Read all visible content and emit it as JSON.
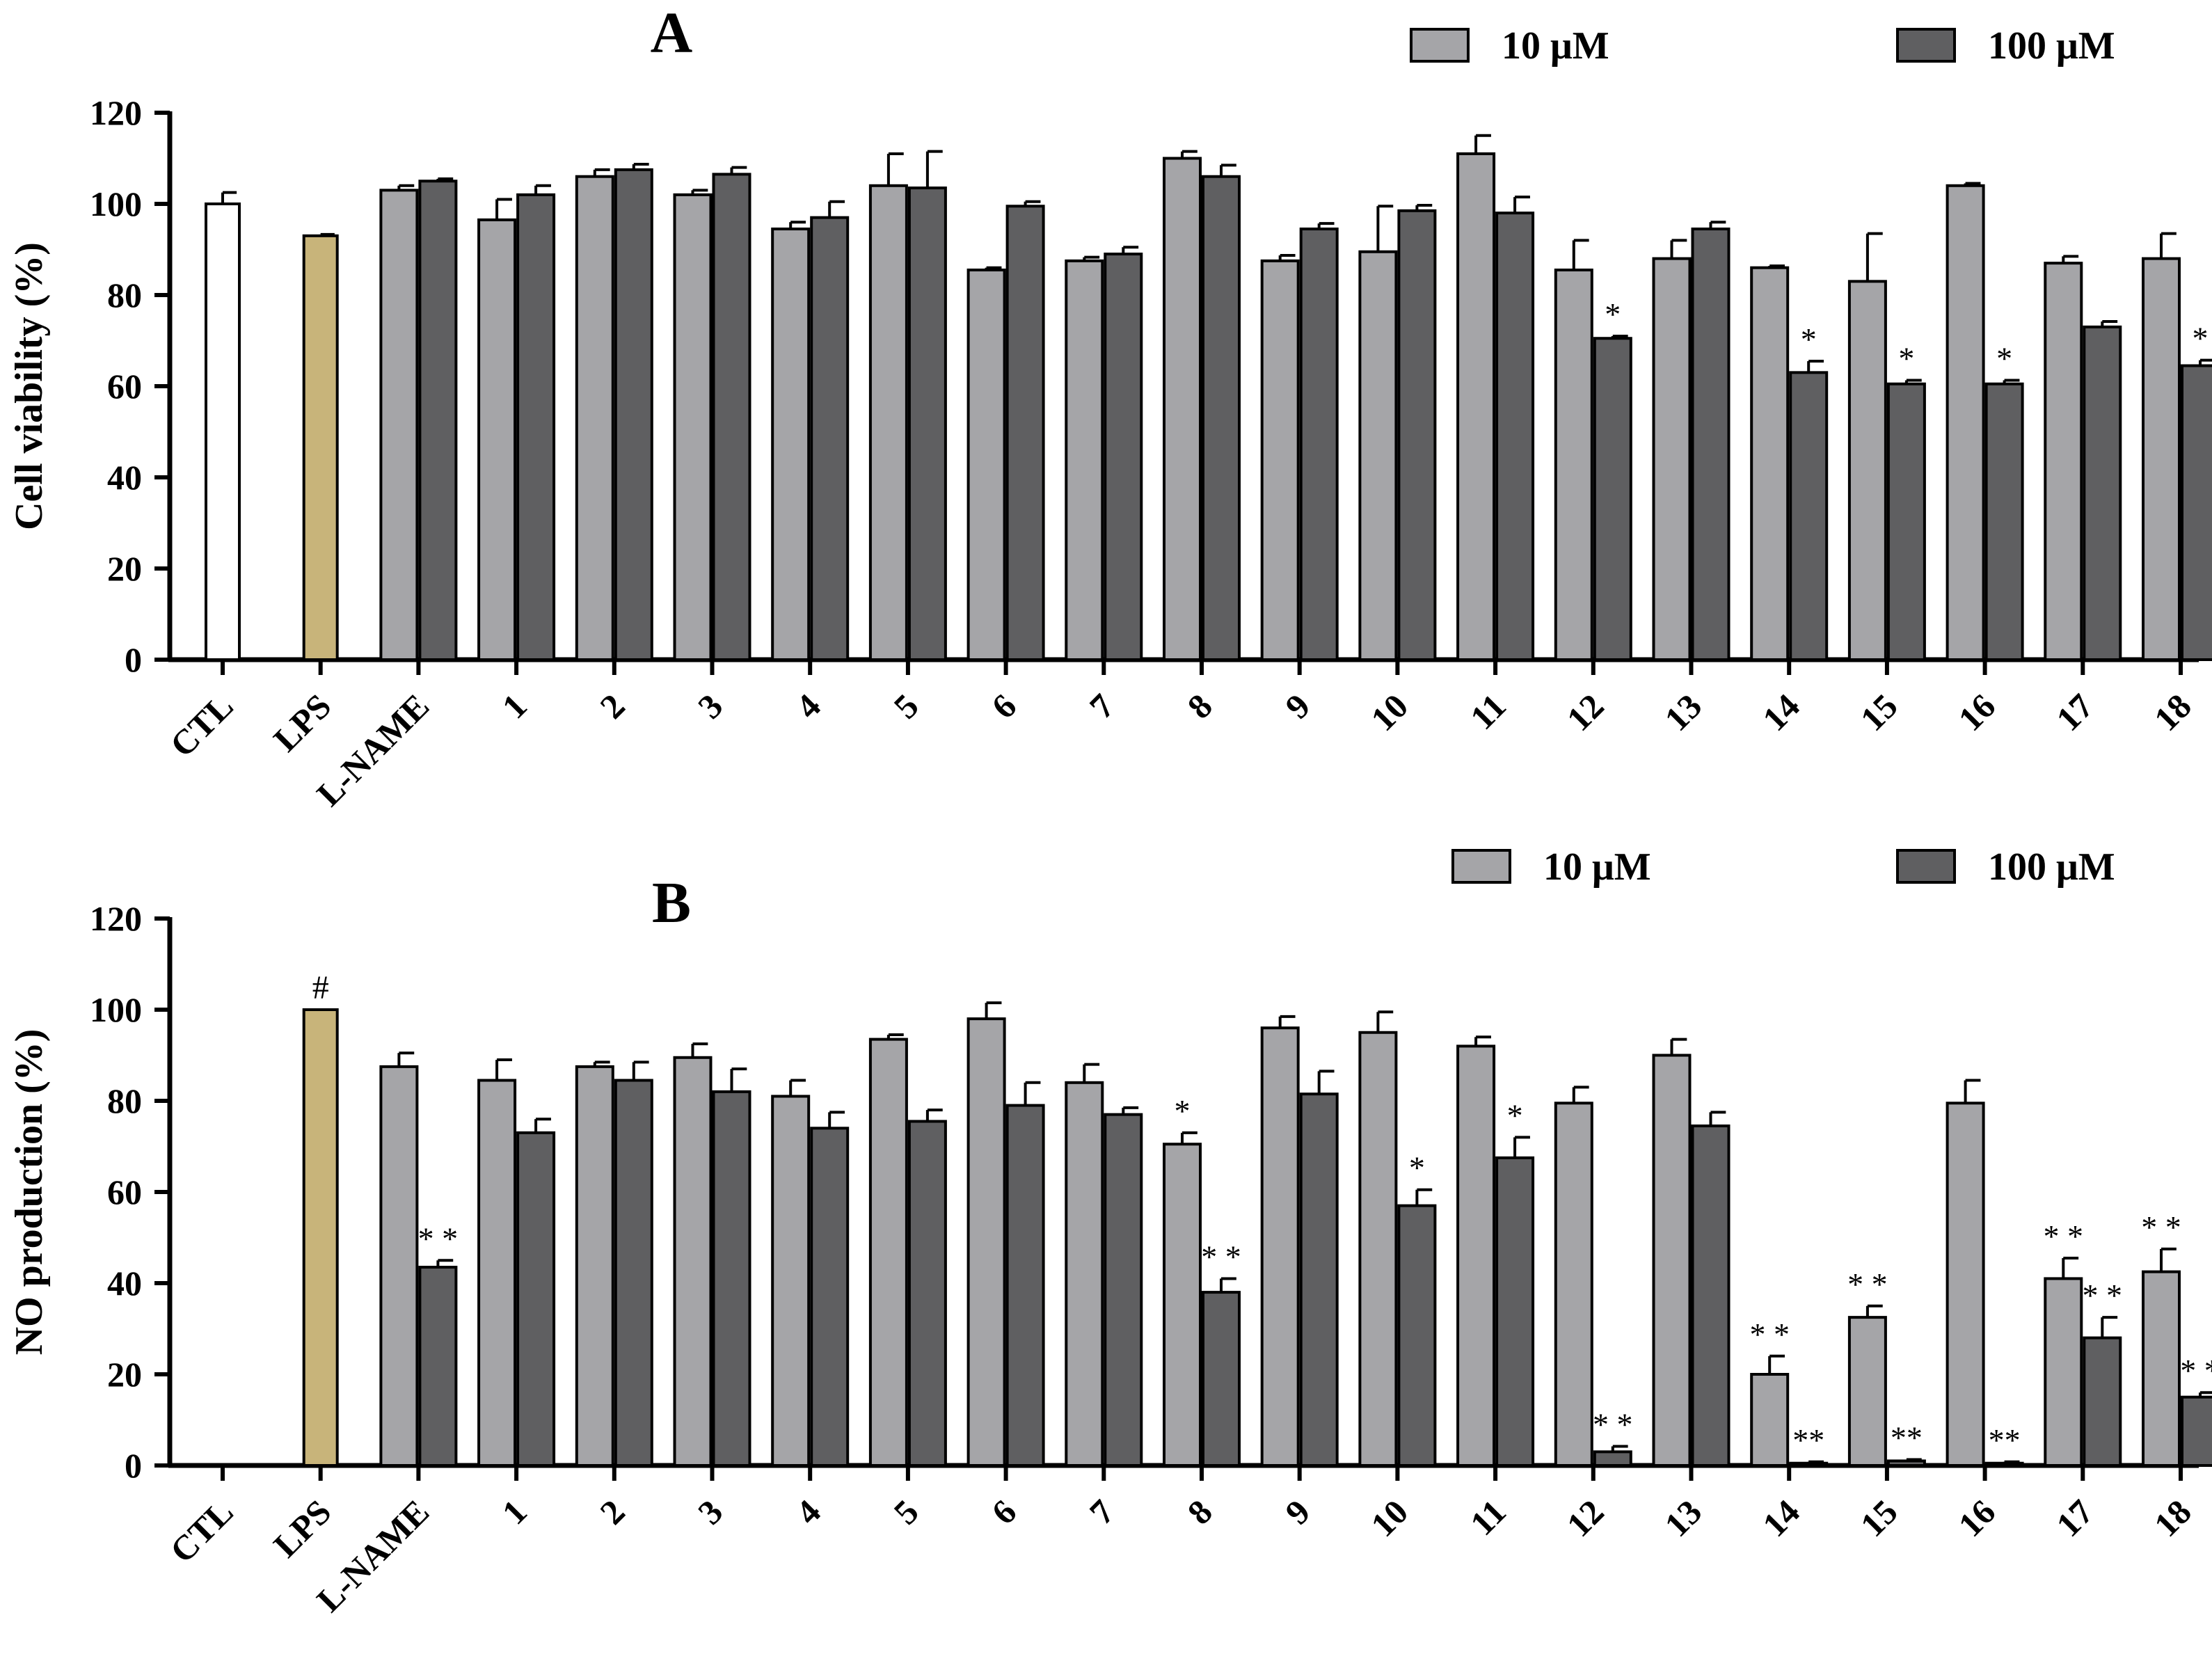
{
  "colors": {
    "ctl": "#ffffff",
    "lps": "#c8b47a",
    "low": "#a5a5a8",
    "high": "#5f5f61",
    "axis": "#000000"
  },
  "categories": [
    "CTL",
    "LPS",
    "L-NAME",
    "1",
    "2",
    "3",
    "4",
    "5",
    "6",
    "7",
    "8",
    "9",
    "10",
    "11",
    "12",
    "13",
    "14",
    "15",
    "16",
    "17",
    "18"
  ],
  "chart_data": [
    {
      "type": "bar",
      "panel": "A",
      "title": "A",
      "ylabel": "Cell viability (%)",
      "xlabel": "",
      "ylim": [
        0,
        120
      ],
      "yticks": [
        0,
        20,
        40,
        60,
        80,
        100,
        120
      ],
      "legend": [
        "10 μM",
        "100 μM"
      ],
      "legend_position": "top-right",
      "controls": [
        {
          "category": "CTL",
          "value": 100,
          "error": 2.5,
          "color_key": "ctl",
          "sig": ""
        },
        {
          "category": "LPS",
          "value": 93,
          "error": 0.3,
          "color_key": "lps",
          "sig": ""
        }
      ],
      "series": [
        {
          "name": "10 μM",
          "color_key": "low",
          "values": [
            103,
            96.5,
            106,
            102,
            94.5,
            104,
            85.5,
            87.5,
            110,
            87.5,
            89.5,
            111,
            85.5,
            88,
            86,
            83,
            104,
            87,
            88
          ],
          "errors": [
            1,
            4.5,
            1.5,
            1,
            1.5,
            7,
            0.5,
            0.8,
            1.5,
            1.2,
            10,
            4,
            6.5,
            4,
            0.4,
            10.5,
            0.5,
            1.5,
            5.5
          ],
          "sig": [
            "",
            "",
            "",
            "",
            "",
            "",
            "",
            "",
            "",
            "",
            "",
            "",
            "",
            "",
            "",
            "",
            "",
            "",
            ""
          ]
        },
        {
          "name": "100 μM",
          "color_key": "high",
          "values": [
            105,
            102,
            107.5,
            106.5,
            97,
            103.5,
            99.5,
            89,
            106,
            94.5,
            98.5,
            98,
            70.5,
            94.5,
            63,
            60.5,
            60.5,
            73,
            64.5
          ],
          "errors": [
            0.5,
            2,
            1.2,
            1.5,
            3.5,
            8,
            1,
            1.5,
            2.5,
            1.2,
            1.2,
            3.5,
            0.5,
            1.5,
            2.5,
            0.8,
            0.8,
            1.2,
            1.2
          ],
          "sig": [
            "",
            "",
            "",
            "",
            "",
            "",
            "",
            "",
            "",
            "",
            "",
            "",
            "*",
            "",
            "*",
            "*",
            "*",
            "",
            "*"
          ]
        }
      ]
    },
    {
      "type": "bar",
      "panel": "B",
      "title": "B",
      "ylabel": "NO production (%)",
      "xlabel": "",
      "ylim": [
        0,
        120
      ],
      "yticks": [
        0,
        20,
        40,
        60,
        80,
        100,
        120
      ],
      "legend": [
        "10 μM",
        "100 μM"
      ],
      "legend_position": "top-right",
      "controls": [
        {
          "category": "CTL",
          "value": 0,
          "error": 0,
          "color_key": "ctl",
          "sig": ""
        },
        {
          "category": "LPS",
          "value": 100,
          "error": 0,
          "color_key": "lps",
          "sig": "#"
        }
      ],
      "series": [
        {
          "name": "10 μM",
          "color_key": "low",
          "values": [
            87.5,
            84.5,
            87.5,
            89.5,
            81,
            93.5,
            98,
            84,
            70.5,
            96,
            95,
            92,
            79.5,
            90,
            20,
            32.5,
            79.5,
            41,
            42.5
          ],
          "errors": [
            3,
            4.5,
            1,
            3,
            3.5,
            1,
            3.5,
            4,
            2.5,
            2.5,
            4.5,
            2,
            3.5,
            3.5,
            4,
            2.5,
            5,
            4.5,
            5
          ],
          "sig": [
            "",
            "",
            "",
            "",
            "",
            "",
            "",
            "",
            "*",
            "",
            "",
            "",
            "",
            "",
            "* *",
            "* *",
            "",
            "* *",
            "* *"
          ]
        },
        {
          "name": "100 μM",
          "color_key": "high",
          "values": [
            43.5,
            73,
            84.5,
            82,
            74,
            75.5,
            79,
            77,
            38,
            81.5,
            57,
            67.5,
            3,
            74.5,
            0.5,
            1,
            0.5,
            28,
            15
          ],
          "errors": [
            1.5,
            3,
            4,
            5,
            3.5,
            2.5,
            5,
            1.5,
            3,
            5,
            3.5,
            4.5,
            1.2,
            3,
            0.3,
            0.3,
            0.3,
            4.5,
            1
          ],
          "sig": [
            "* *",
            "",
            "",
            "",
            "",
            "",
            "",
            "",
            "* *",
            "",
            "*",
            "*",
            "* *",
            "",
            "**",
            "**",
            "**",
            "* *",
            "* *"
          ]
        }
      ]
    }
  ]
}
